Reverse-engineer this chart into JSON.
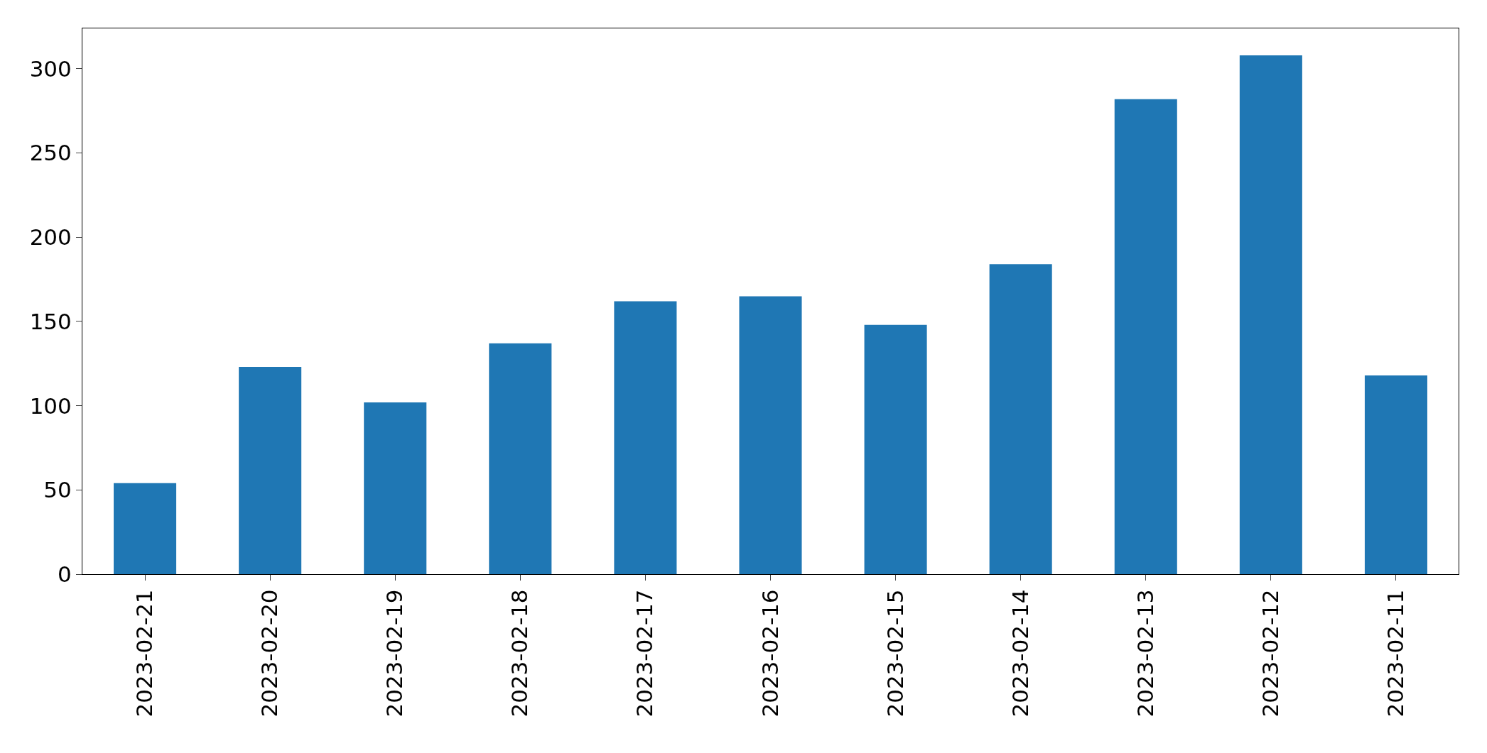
{
  "chart_data": {
    "type": "bar",
    "categories": [
      "2023-02-21",
      "2023-02-20",
      "2023-02-19",
      "2023-02-18",
      "2023-02-17",
      "2023-02-16",
      "2023-02-15",
      "2023-02-14",
      "2023-02-13",
      "2023-02-12",
      "2023-02-11"
    ],
    "values": [
      54,
      123,
      102,
      137,
      162,
      165,
      148,
      184,
      282,
      308,
      118
    ],
    "color": "#1f77b4",
    "ylim": [
      0,
      324
    ],
    "yticks": [
      0,
      50,
      100,
      150,
      200,
      250,
      300
    ]
  }
}
